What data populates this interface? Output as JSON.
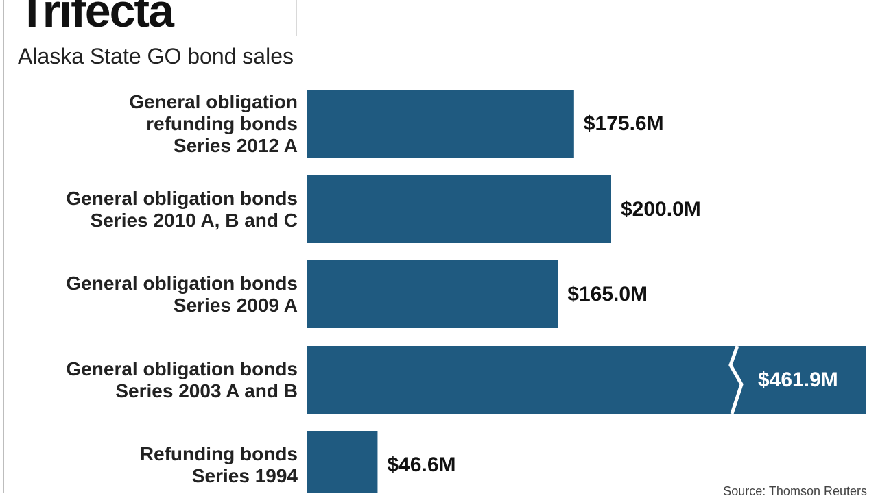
{
  "title": "Trifecta",
  "subtitle": "Alaska State GO bond sales",
  "source": "Source: Thomson Reuters",
  "colors": {
    "bar": "#1f5a80",
    "text": "#111111",
    "break": "#ffffff"
  },
  "chart_data": {
    "type": "bar",
    "orientation": "horizontal",
    "categories": [
      "General obligation\nrefunding bonds\nSeries 2012 A",
      "General obligation bonds\nSeries 2010 A, B and C",
      "General obligation bonds\nSeries 2009 A",
      "General obligation bonds\nSeries 2003 A and B",
      "Refunding bonds\nSeries 1994"
    ],
    "values": [
      175.6,
      200.0,
      165.0,
      461.9,
      46.6
    ],
    "value_labels": [
      "$175.6M",
      "$200.0M",
      "$165.0M",
      "$461.9M",
      "$46.6M"
    ],
    "xlabel": "",
    "ylabel": "",
    "axis_break": {
      "category_index": 3,
      "note": "bar truncated with break marks"
    },
    "grid": false,
    "legend": "none"
  }
}
